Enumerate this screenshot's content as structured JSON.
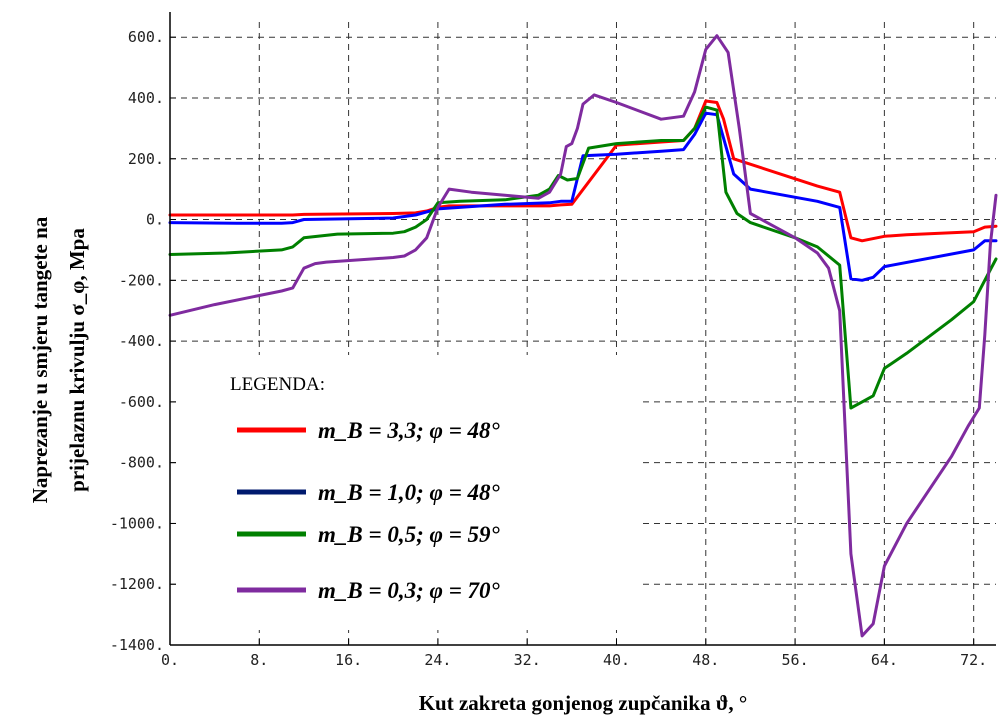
{
  "chart_data": {
    "type": "line",
    "xlabel": "Kut zakreta gonjenog zupčanika ϑ, °",
    "ylabel_line1": "Naprezanje  u smjeru tangete na",
    "ylabel_line2": "prijelaznu krivulju  σ_φ, Mpa",
    "xlim": [
      0,
      74
    ],
    "ylim": [
      -1400,
      650
    ],
    "xticks": [
      0,
      8,
      16,
      24,
      32,
      40,
      48,
      56,
      64,
      72
    ],
    "xtick_labels": [
      "0.",
      "8.",
      "16.",
      "24.",
      "32.",
      "40.",
      "48.",
      "56.",
      "64.",
      "72."
    ],
    "yticks": [
      600,
      400,
      200,
      0,
      -200,
      -400,
      -600,
      -800,
      -1000,
      -1200,
      -1400
    ],
    "ytick_labels": [
      "600.",
      "400.",
      "200.",
      "0.",
      "-200.",
      "-400.",
      "-600.",
      "-800.",
      "-1000.",
      "-1200.",
      "-1400."
    ],
    "grid": true,
    "legend_title": "LEGENDA:",
    "legend_position": "lower-left",
    "series": [
      {
        "name": "m_B = 3,3; φ = 48°",
        "color": "#ff0000",
        "x": [
          0,
          8,
          11,
          12,
          20,
          22,
          23,
          24,
          25,
          30,
          34,
          35,
          36,
          40,
          44,
          46,
          47,
          48,
          49,
          49.6,
          50.5,
          58,
          60,
          61,
          62,
          64,
          66,
          72,
          73,
          74
        ],
        "y": [
          15,
          15,
          15,
          17,
          20,
          22,
          28,
          40,
          45,
          45,
          45,
          48,
          50,
          245,
          255,
          260,
          300,
          390,
          385,
          330,
          200,
          110,
          90,
          -60,
          -70,
          -55,
          -50,
          -40,
          -25,
          -22
        ]
      },
      {
        "name": "m_B = 1,0; φ = 48°",
        "color": "#0000ff",
        "x": [
          0,
          6,
          10,
          11,
          12,
          20,
          22,
          23,
          24,
          30,
          34,
          35,
          36,
          37,
          40,
          44,
          46,
          47,
          48,
          49,
          50.5,
          52,
          58,
          60,
          61,
          62,
          63,
          64,
          72,
          73,
          74
        ],
        "y": [
          -10,
          -12,
          -12,
          -10,
          0,
          5,
          15,
          25,
          35,
          50,
          55,
          60,
          60,
          210,
          215,
          225,
          230,
          280,
          350,
          345,
          150,
          100,
          60,
          40,
          -195,
          -200,
          -190,
          -155,
          -100,
          -70,
          -70
        ]
      },
      {
        "name": "m_B = 0,5; φ = 59°",
        "color": "#008000",
        "x": [
          0,
          5,
          10,
          11,
          12,
          15,
          20,
          21,
          22,
          23,
          24,
          26,
          30,
          33,
          34,
          34.8,
          35.6,
          36.5,
          37.5,
          40,
          44,
          46,
          47,
          48,
          49,
          49.8,
          50.8,
          52,
          56,
          58,
          60,
          61,
          62,
          63,
          64,
          66,
          70,
          72,
          73,
          74
        ],
        "y": [
          -115,
          -110,
          -100,
          -90,
          -60,
          -48,
          -45,
          -40,
          -25,
          0,
          55,
          60,
          65,
          80,
          100,
          145,
          130,
          135,
          235,
          250,
          260,
          260,
          300,
          370,
          360,
          90,
          20,
          -10,
          -60,
          -90,
          -150,
          -620,
          -600,
          -580,
          -490,
          -440,
          -330,
          -270,
          -200,
          -130
        ]
      },
      {
        "name": "m_B = 0,3; φ = 70°",
        "color": "#7f2b9f",
        "x": [
          0,
          4,
          8,
          10,
          11,
          12,
          13,
          14,
          20,
          21,
          22,
          23,
          24,
          25,
          27,
          30,
          33,
          34,
          35,
          35.5,
          36,
          36.5,
          37,
          38,
          40,
          44,
          46,
          47,
          48,
          49,
          50,
          51,
          52,
          56,
          58,
          59,
          60,
          61,
          62,
          63,
          64,
          66,
          70,
          71.5,
          72.5,
          73,
          73.5,
          74
        ],
        "y": [
          -315,
          -280,
          -250,
          -235,
          -225,
          -160,
          -145,
          -140,
          -125,
          -120,
          -100,
          -60,
          40,
          100,
          90,
          80,
          70,
          90,
          150,
          240,
          250,
          300,
          380,
          410,
          385,
          330,
          340,
          420,
          560,
          605,
          550,
          300,
          20,
          -60,
          -110,
          -160,
          -300,
          -1100,
          -1370,
          -1330,
          -1140,
          -1000,
          -780,
          -680,
          -620,
          -380,
          -80,
          80
        ]
      }
    ],
    "legend_entries": [
      "m_B = 3,3; φ = 48°",
      "m_B = 1,0; φ = 48°",
      "m_B = 0,5; φ = 59°",
      "m_B = 0,3; φ = 70°"
    ]
  }
}
